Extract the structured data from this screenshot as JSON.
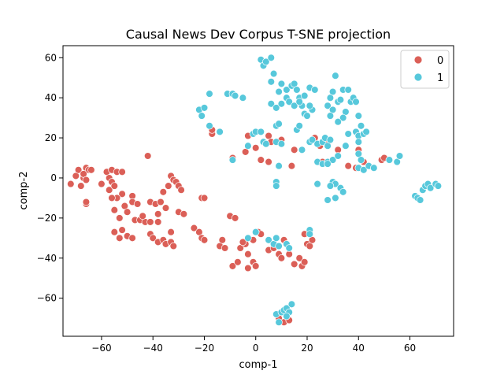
{
  "chart_data": {
    "type": "scatter",
    "title": "Causal News Dev Corpus T-SNE projection",
    "xlabel": "comp-1",
    "ylabel": "comp-2",
    "xlim": [
      -75,
      77
    ],
    "ylim": [
      -79,
      66
    ],
    "xticks": [
      -60,
      -40,
      -20,
      0,
      20,
      40,
      60
    ],
    "yticks": [
      -60,
      -40,
      -20,
      0,
      20,
      40,
      60
    ],
    "xtick_labels": [
      "−60",
      "−40",
      "−20",
      "0",
      "20",
      "40",
      "60"
    ],
    "ytick_labels": [
      "−60",
      "−40",
      "−20",
      "0",
      "20",
      "40",
      "60"
    ],
    "grid": false,
    "legend_position": "top-right",
    "series": [
      {
        "name": "0",
        "color": "#db5f57",
        "points": [
          [
            -72,
            -3
          ],
          [
            -70,
            1
          ],
          [
            -69,
            4
          ],
          [
            -68,
            -4
          ],
          [
            -67,
            0
          ],
          [
            -66,
            5
          ],
          [
            -65,
            4
          ],
          [
            -67,
            2
          ],
          [
            -66,
            -1
          ],
          [
            -64,
            4
          ],
          [
            -66,
            -13
          ],
          [
            -66,
            -12
          ],
          [
            -60,
            -3
          ],
          [
            -58,
            3
          ],
          [
            -57,
            0
          ],
          [
            -56,
            4
          ],
          [
            -54,
            3
          ],
          [
            -56,
            -2
          ],
          [
            -57,
            -6
          ],
          [
            -55,
            -4
          ],
          [
            -52,
            3
          ],
          [
            -52,
            -8
          ],
          [
            -54,
            -10
          ],
          [
            -56,
            -10
          ],
          [
            -55,
            -16
          ],
          [
            -53,
            -20
          ],
          [
            -51,
            -14
          ],
          [
            -50,
            -17
          ],
          [
            -48,
            -9
          ],
          [
            -48,
            -12
          ],
          [
            -46,
            -13
          ],
          [
            -47,
            -21
          ],
          [
            -45,
            -21
          ],
          [
            -43,
            -22
          ],
          [
            -44,
            -19
          ],
          [
            -42,
            11
          ],
          [
            -41,
            -12
          ],
          [
            -39,
            -13
          ],
          [
            -38,
            -18
          ],
          [
            -41,
            -22
          ],
          [
            -38,
            -22
          ],
          [
            -37,
            -12
          ],
          [
            -35,
            -15
          ],
          [
            -36,
            -7
          ],
          [
            -34,
            -4
          ],
          [
            -33,
            1
          ],
          [
            -32,
            -1
          ],
          [
            -31,
            -2
          ],
          [
            -30,
            -4
          ],
          [
            -29,
            -6
          ],
          [
            -30,
            -17
          ],
          [
            -28,
            -18
          ],
          [
            -55,
            -27
          ],
          [
            -53,
            -30
          ],
          [
            -52,
            -26
          ],
          [
            -50,
            -29
          ],
          [
            -48,
            -30
          ],
          [
            -41,
            -28
          ],
          [
            -40,
            -30
          ],
          [
            -38,
            -32
          ],
          [
            -36,
            -31
          ],
          [
            -35,
            -33
          ],
          [
            -33,
            -32
          ],
          [
            -32,
            -34
          ],
          [
            -33,
            -27
          ],
          [
            -24,
            -25
          ],
          [
            -22,
            -27
          ],
          [
            -21,
            -30
          ],
          [
            -20,
            -31
          ],
          [
            -21,
            -10
          ],
          [
            -20,
            -10
          ],
          [
            -17,
            22
          ],
          [
            -17,
            24
          ],
          [
            -9,
            10
          ],
          [
            -14,
            -34
          ],
          [
            -13,
            -31
          ],
          [
            -12,
            -35
          ],
          [
            -10,
            -19
          ],
          [
            -8,
            -20
          ],
          [
            -9,
            -44
          ],
          [
            -7,
            -42
          ],
          [
            -6,
            -35
          ],
          [
            -4,
            -33
          ],
          [
            -3,
            -38
          ],
          [
            -1,
            -42
          ],
          [
            0,
            -44
          ],
          [
            -3,
            -45
          ],
          [
            -5,
            -32
          ],
          [
            -1,
            -31
          ],
          [
            -4,
            13
          ],
          [
            -3,
            21
          ],
          [
            0,
            15
          ],
          [
            2,
            9
          ],
          [
            5,
            21
          ],
          [
            5,
            8
          ],
          [
            6,
            18
          ],
          [
            9,
            18
          ],
          [
            10,
            19
          ],
          [
            1,
            -27
          ],
          [
            2,
            -28
          ],
          [
            5,
            -36
          ],
          [
            7,
            -35
          ],
          [
            9,
            -38
          ],
          [
            10,
            -40
          ],
          [
            11,
            -31
          ],
          [
            13,
            -38
          ],
          [
            15,
            -43
          ],
          [
            17,
            -40
          ],
          [
            18,
            -44
          ],
          [
            19,
            -42
          ],
          [
            20,
            -33
          ],
          [
            21,
            -34
          ],
          [
            22,
            -31
          ],
          [
            19,
            -28
          ],
          [
            9,
            -70
          ],
          [
            11,
            -72
          ],
          [
            13,
            -71
          ],
          [
            14,
            6
          ],
          [
            15,
            14
          ],
          [
            23,
            20
          ],
          [
            25,
            16
          ],
          [
            28,
            17
          ],
          [
            26,
            8
          ],
          [
            32,
            14
          ],
          [
            36,
            6
          ],
          [
            39,
            5
          ],
          [
            40,
            14
          ],
          [
            42,
            8
          ],
          [
            49,
            9
          ],
          [
            50,
            10
          ]
        ]
      },
      {
        "name": "1",
        "color": "#57c8db",
        "points": [
          [
            -22,
            34
          ],
          [
            -21,
            31
          ],
          [
            -20,
            35
          ],
          [
            -18,
            26
          ],
          [
            -18,
            42
          ],
          [
            -14,
            23
          ],
          [
            -11,
            42
          ],
          [
            -9,
            42
          ],
          [
            -8,
            41
          ],
          [
            -5,
            40
          ],
          [
            -9,
            9
          ],
          [
            -3,
            16
          ],
          [
            -1,
            22
          ],
          [
            0,
            23
          ],
          [
            2,
            23
          ],
          [
            3,
            18
          ],
          [
            4,
            17
          ],
          [
            8,
            18
          ],
          [
            10,
            17
          ],
          [
            9,
            6
          ],
          [
            8,
            26
          ],
          [
            9,
            27
          ],
          [
            2,
            59
          ],
          [
            3,
            56
          ],
          [
            4,
            58
          ],
          [
            6,
            60
          ],
          [
            7,
            52
          ],
          [
            6,
            48
          ],
          [
            9,
            43
          ],
          [
            10,
            47
          ],
          [
            12,
            44
          ],
          [
            14,
            46
          ],
          [
            15,
            47
          ],
          [
            16,
            44
          ],
          [
            6,
            37
          ],
          [
            8,
            35
          ],
          [
            10,
            37
          ],
          [
            12,
            40
          ],
          [
            13,
            38
          ],
          [
            15,
            36
          ],
          [
            17,
            40
          ],
          [
            18,
            36
          ],
          [
            19,
            32
          ],
          [
            20,
            31
          ],
          [
            22,
            34
          ],
          [
            21,
            45
          ],
          [
            23,
            44
          ],
          [
            17,
            38
          ],
          [
            19,
            41
          ],
          [
            21,
            36
          ],
          [
            16,
            24
          ],
          [
            17,
            26
          ],
          [
            18,
            14
          ],
          [
            21,
            18
          ],
          [
            22,
            19
          ],
          [
            24,
            17
          ],
          [
            26,
            18
          ],
          [
            28,
            16
          ],
          [
            27,
            20
          ],
          [
            29,
            19
          ],
          [
            24,
            8
          ],
          [
            26,
            7
          ],
          [
            28,
            8
          ],
          [
            30,
            9
          ],
          [
            32,
            11
          ],
          [
            28,
            7
          ],
          [
            24,
            -3
          ],
          [
            30,
            -2
          ],
          [
            31,
            -3
          ],
          [
            33,
            -5
          ],
          [
            29,
            -4
          ],
          [
            28,
            -11
          ],
          [
            31,
            -10
          ],
          [
            34,
            -7
          ],
          [
            35,
            16
          ],
          [
            36,
            22
          ],
          [
            28,
            36
          ],
          [
            29,
            40
          ],
          [
            30,
            43
          ],
          [
            31,
            51
          ],
          [
            32,
            38
          ],
          [
            33,
            39
          ],
          [
            34,
            44
          ],
          [
            36,
            44
          ],
          [
            37,
            38
          ],
          [
            35,
            33
          ],
          [
            34,
            30
          ],
          [
            32,
            28
          ],
          [
            30,
            34
          ],
          [
            29,
            31
          ],
          [
            38,
            40
          ],
          [
            39,
            38
          ],
          [
            40,
            31
          ],
          [
            41,
            26
          ],
          [
            39,
            23
          ],
          [
            40,
            21
          ],
          [
            42,
            22
          ],
          [
            43,
            23
          ],
          [
            40,
            18
          ],
          [
            40,
            12
          ],
          [
            41,
            9
          ],
          [
            40,
            5
          ],
          [
            42,
            4
          ],
          [
            44,
            6
          ],
          [
            46,
            5
          ],
          [
            52,
            9
          ],
          [
            55,
            8
          ],
          [
            56,
            11
          ],
          [
            62,
            -9
          ],
          [
            63,
            -10
          ],
          [
            64,
            -11
          ],
          [
            65,
            -6
          ],
          [
            66,
            -4
          ],
          [
            67,
            -3
          ],
          [
            68,
            -5
          ],
          [
            70,
            -3
          ],
          [
            71,
            -4
          ],
          [
            8,
            -68
          ],
          [
            9,
            -72
          ],
          [
            10,
            -67
          ],
          [
            11,
            -66
          ],
          [
            12,
            -65
          ],
          [
            13,
            -67
          ],
          [
            14,
            -63
          ],
          [
            12,
            -69
          ],
          [
            5,
            -31
          ],
          [
            7,
            -33
          ],
          [
            8,
            -30
          ],
          [
            9,
            -34
          ],
          [
            12,
            -33
          ],
          [
            13,
            -35
          ],
          [
            21,
            -26
          ],
          [
            21,
            -28
          ],
          [
            -3,
            -30
          ],
          [
            0,
            -27
          ],
          [
            8,
            -2
          ],
          [
            8,
            -4
          ]
        ]
      }
    ]
  }
}
